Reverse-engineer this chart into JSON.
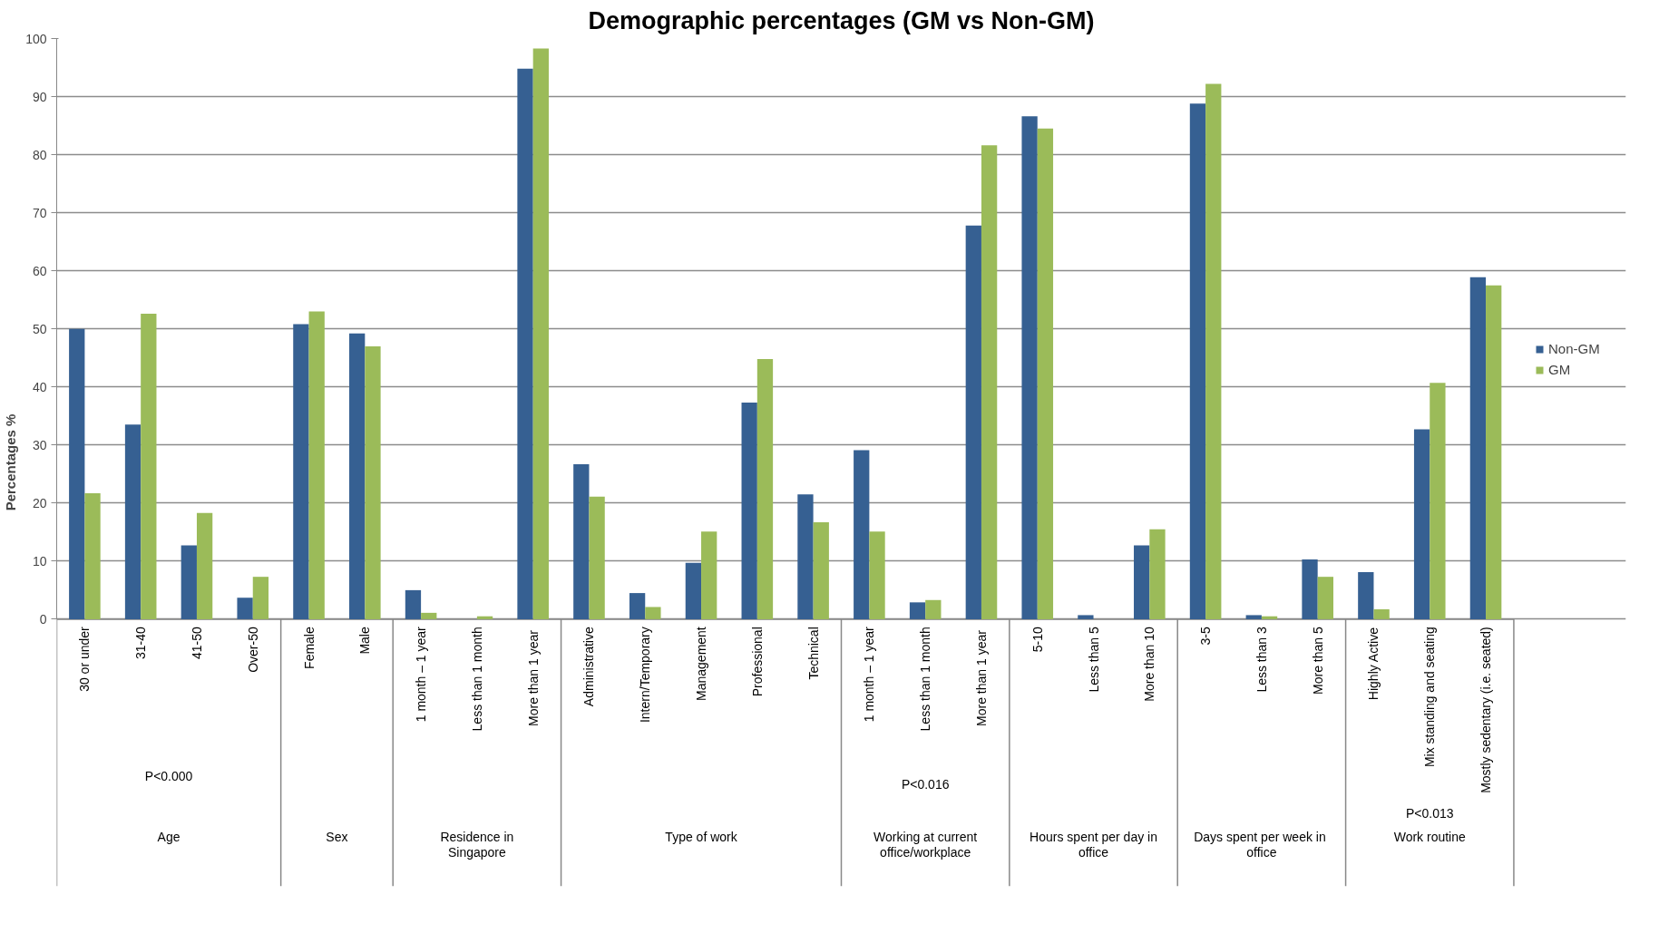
{
  "chart_data": {
    "type": "bar",
    "title": "Demographic percentages (GM vs Non-GM)",
    "ylabel": "Percentages %",
    "categories": [
      "30 or under",
      "31-40",
      "41-50",
      "Over-50",
      "Female",
      "Male",
      "1 month – 1 year",
      "Less than 1 month",
      "More than 1  year",
      "Administrative",
      "Intern/Temporary",
      "Management",
      "Professional",
      "Technical",
      "1 month – 1 year",
      "Less than 1 month",
      "More than 1  year",
      "5-10",
      "Less than 5",
      "More than 10",
      "3-5",
      "Less than 3",
      "More than 5",
      "Highly Active",
      "Mix standing and seating",
      "Mostly sedentary (i.e. seated)"
    ],
    "series": [
      {
        "name": "Non-GM",
        "color": "#366092",
        "values": [
          50.0,
          33.5,
          12.7,
          3.7,
          50.8,
          49.2,
          5.0,
          0,
          94.8,
          26.7,
          4.5,
          9.7,
          37.3,
          21.5,
          29.1,
          2.9,
          67.8,
          86.6,
          0.7,
          12.7,
          88.8,
          0.7,
          10.3,
          8.1,
          32.7,
          58.9
        ]
      },
      {
        "name": "GM",
        "color": "#9bbb59",
        "values": [
          21.7,
          52.6,
          18.3,
          7.3,
          53.0,
          47.0,
          1.1,
          0.5,
          98.3,
          21.1,
          2.1,
          15.1,
          44.8,
          16.7,
          15.1,
          3.3,
          81.6,
          84.5,
          0,
          15.5,
          92.2,
          0.5,
          7.3,
          1.7,
          40.7,
          57.5
        ]
      }
    ],
    "ylim": [
      0,
      100
    ],
    "yticks": [
      0,
      10,
      20,
      30,
      40,
      50,
      60,
      70,
      80,
      90,
      100
    ],
    "grid": "y",
    "legend": "right",
    "annotations": [
      "Age",
      "Sex",
      "Residence in\nSingapore",
      "Type of work",
      "Working at current\noffice/workplace",
      "Hours spent per day in\noffice",
      "Days spent per week  in\noffice",
      "Work routine",
      "P<0.000",
      "P<0.016",
      "P<0.013"
    ]
  }
}
